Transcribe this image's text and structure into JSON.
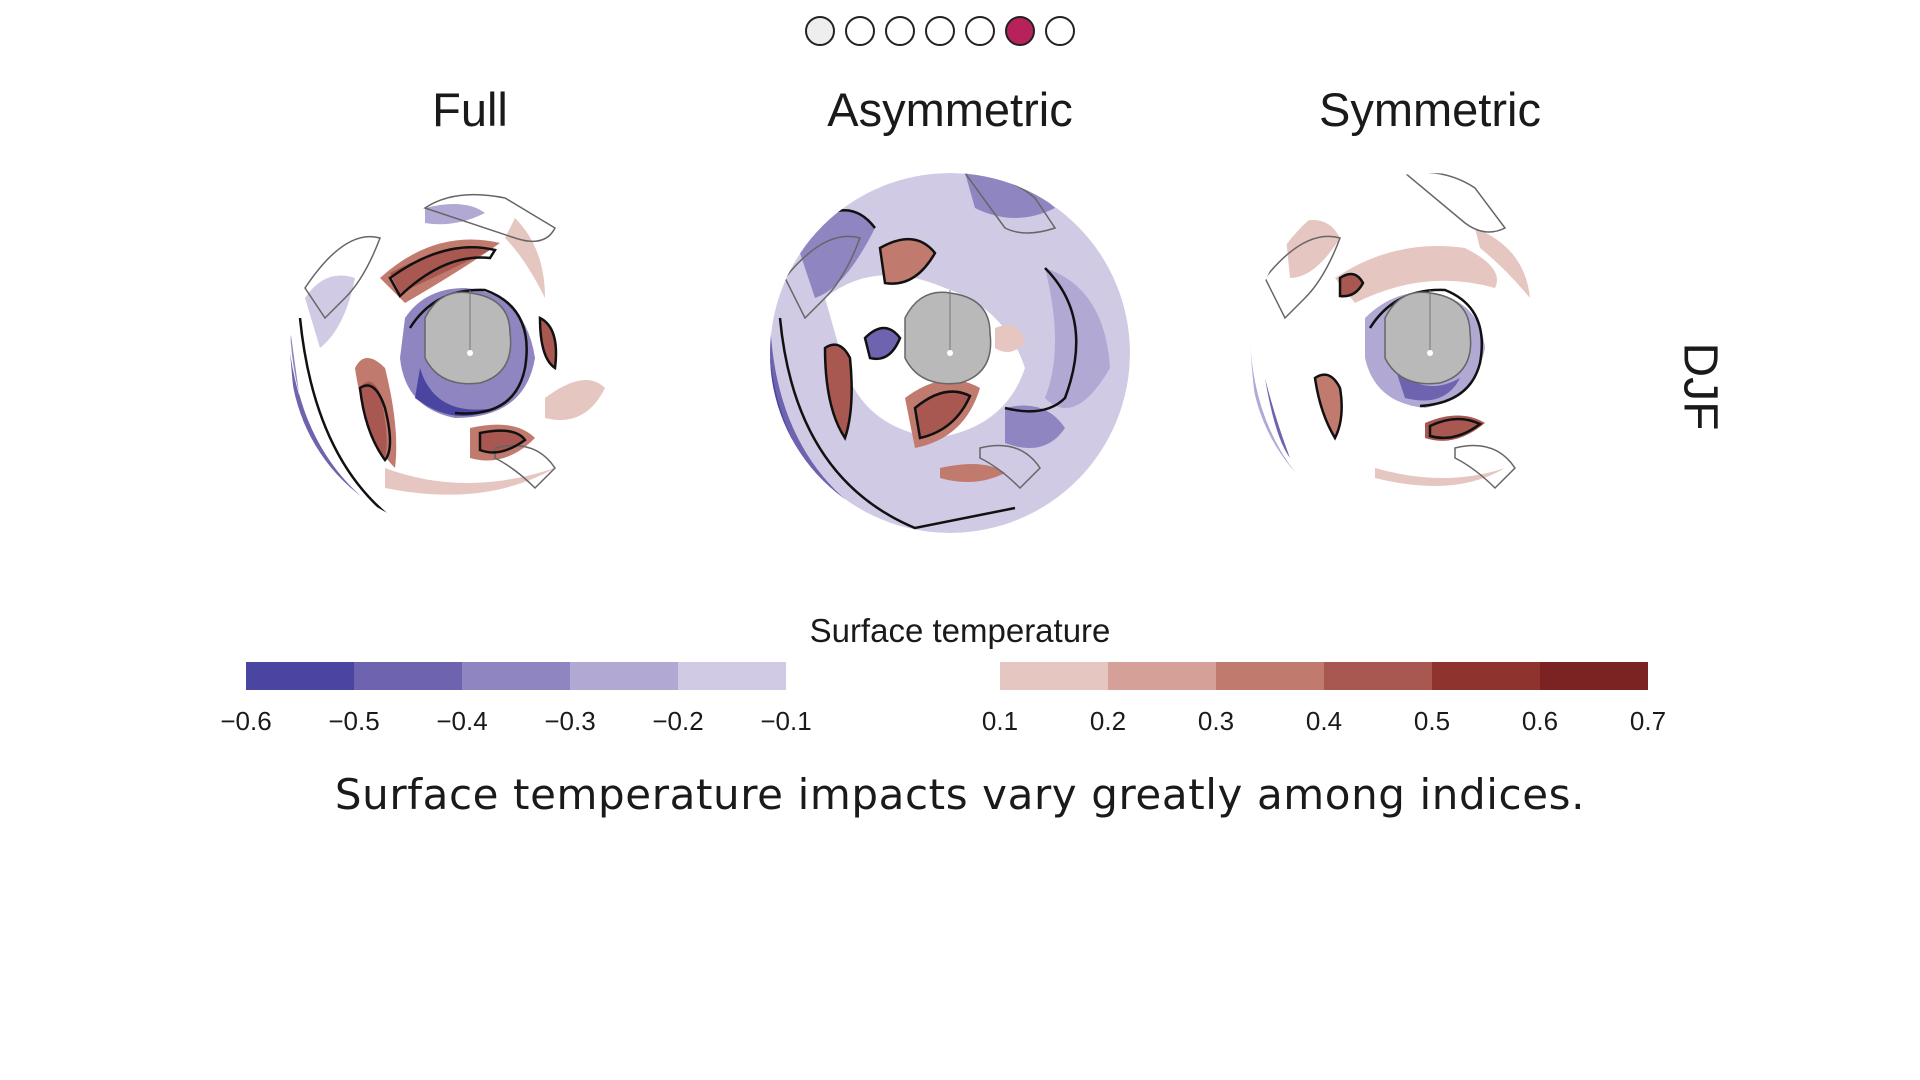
{
  "pager": {
    "count": 7,
    "active_index": 5,
    "visited_index": 0
  },
  "panels": [
    {
      "title": "Full"
    },
    {
      "title": "Asymmetric"
    },
    {
      "title": "Symmetric"
    }
  ],
  "season_label": "DJF",
  "colorbar": {
    "title": "Surface temperature",
    "negative_ticks": [
      "−0.6",
      "−0.5",
      "−0.4",
      "−0.3",
      "−0.2",
      "−0.1"
    ],
    "positive_ticks": [
      "0.1",
      "0.2",
      "0.3",
      "0.4",
      "0.5",
      "0.6",
      "0.7"
    ],
    "negative_colors": [
      "#4a45a0",
      "#6e63ae",
      "#8f86c1",
      "#b1a8d4",
      "#d0cae5"
    ],
    "positive_colors": [
      "#e6c6c0",
      "#d4a097",
      "#c17a6e",
      "#a85850",
      "#8e332e",
      "#7b2222"
    ]
  },
  "caption": "Surface temperature impacts vary greatly among indices.",
  "colors": {
    "active_dot": "#b8225a",
    "antarctica": "#b9b9b9"
  }
}
